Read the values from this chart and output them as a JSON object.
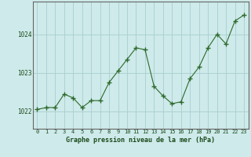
{
  "x": [
    0,
    1,
    2,
    3,
    4,
    5,
    6,
    7,
    8,
    9,
    10,
    11,
    12,
    13,
    14,
    15,
    16,
    17,
    18,
    19,
    20,
    21,
    22,
    23
  ],
  "y": [
    1022.05,
    1022.1,
    1022.1,
    1022.45,
    1022.35,
    1022.1,
    1022.28,
    1022.28,
    1022.75,
    1023.05,
    1023.35,
    1023.65,
    1023.6,
    1022.65,
    1022.4,
    1022.2,
    1022.25,
    1022.85,
    1023.15,
    1023.65,
    1024.0,
    1023.75,
    1024.35,
    1024.5
  ],
  "yticks": [
    1022,
    1023,
    1024
  ],
  "xlabel": "Graphe pression niveau de la mer (hPa)",
  "line_color": "#2d6a2d",
  "marker": "+",
  "background_color": "#ceeaea",
  "grid_color": "#a8cece",
  "axis_label_color": "#1a4a1a",
  "ylim": [
    1021.55,
    1024.85
  ],
  "xlim": [
    -0.5,
    23.5
  ]
}
